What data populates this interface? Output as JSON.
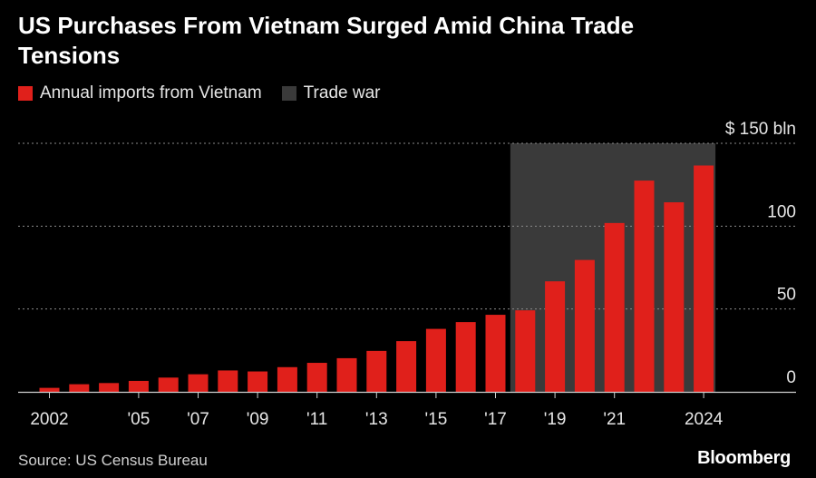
{
  "title": "US Purchases From Vietnam Surged Amid China Trade Tensions",
  "colors": {
    "bar": "#e0201b",
    "shade": "#3a3a3a",
    "grid": "#8a8a8a",
    "axis": "#cfcfcf"
  },
  "legend": {
    "imports_label": "Annual imports from Vietnam",
    "trade_war_label": "Trade war"
  },
  "source": "Source: US Census Bureau",
  "brand": "Bloomberg",
  "chart_data": {
    "type": "bar",
    "title": "US Purchases From Vietnam Surged Amid China Trade Tensions",
    "xlabel": "",
    "ylabel": "",
    "unit": "$ bln",
    "ylim": [
      0,
      150
    ],
    "yticks": [
      0,
      50,
      100,
      150
    ],
    "ytick_labels": [
      "0",
      "50",
      "100",
      "$ 150 bln"
    ],
    "categories": [
      "2002",
      "2003",
      "2004",
      "2005",
      "2006",
      "2007",
      "2008",
      "2009",
      "2010",
      "2011",
      "2012",
      "2013",
      "2014",
      "2015",
      "2016",
      "2017",
      "2018",
      "2019",
      "2020",
      "2021",
      "2022",
      "2023",
      "2024"
    ],
    "values": [
      2.4,
      4.6,
      5.3,
      6.6,
      8.6,
      10.6,
      12.9,
      12.3,
      14.9,
      17.5,
      20.3,
      24.7,
      30.6,
      38.0,
      42.1,
      46.5,
      49.2,
      66.7,
      79.6,
      101.9,
      127.5,
      114.4,
      136.6
    ],
    "xtick_labels": [
      {
        "index": 0,
        "label": "2002"
      },
      {
        "index": 3,
        "label": "'05"
      },
      {
        "index": 5,
        "label": "'07"
      },
      {
        "index": 7,
        "label": "'09"
      },
      {
        "index": 9,
        "label": "'11"
      },
      {
        "index": 11,
        "label": "'13"
      },
      {
        "index": 13,
        "label": "'15"
      },
      {
        "index": 15,
        "label": "'17"
      },
      {
        "index": 17,
        "label": "'19"
      },
      {
        "index": 19,
        "label": "'21"
      },
      {
        "index": 22,
        "label": "2024"
      }
    ],
    "shaded_range": {
      "label": "Trade war",
      "from": "2018",
      "to": "2024"
    }
  }
}
